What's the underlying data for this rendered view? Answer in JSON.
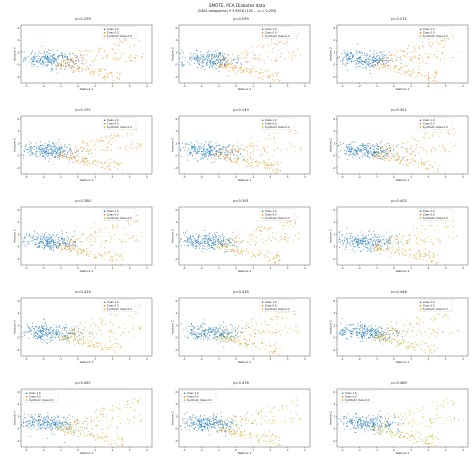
{
  "figure": {
    "title": "SMOTE, PCA Diabetes data",
    "subtitle": "(5404 datapoints) 9 5 8918 (100 ... p = 0.293)"
  },
  "colors": {
    "class_1": "#1f77b4",
    "class_0": "#ff7f0e",
    "synthetic": "#bcbd22",
    "axes": "#333333"
  },
  "legend_labels": [
    "Class 1.0",
    "Class 0.0",
    "Synthetic Class 0.0"
  ],
  "chart_data": [
    {
      "type": "scatter",
      "title": "p=0.293",
      "xlabel": "feature 1",
      "ylabel": "feature 2",
      "xticks": [
        "-3",
        "-2",
        "-1",
        "0",
        "1",
        "2",
        "3",
        "4"
      ],
      "yticks": [
        "-2",
        "0",
        "2",
        "4",
        "6"
      ],
      "legend": "top-right"
    },
    {
      "type": "scatter",
      "title": "p=0.059",
      "xlabel": "feature 1",
      "ylabel": "feature 2",
      "xticks": [
        "-3",
        "-2",
        "-1",
        "0",
        "1",
        "2",
        "3",
        "4"
      ],
      "yticks": [
        "-2",
        "0",
        "2",
        "4",
        "6"
      ],
      "legend": "top-right"
    },
    {
      "type": "scatter",
      "title": "p=0.215",
      "xlabel": "feature 1",
      "ylabel": "feature 2",
      "xticks": [
        "-3",
        "-2",
        "-1",
        "0",
        "1",
        "2",
        "3",
        "4"
      ],
      "yticks": [
        "-2",
        "0",
        "2",
        "4",
        "6"
      ],
      "legend": "top-right"
    },
    {
      "type": "scatter",
      "title": "p=0.197",
      "xlabel": "feature 1",
      "ylabel": "feature 2",
      "xticks": [
        "-3",
        "-2",
        "-1",
        "0",
        "1",
        "2",
        "3",
        "4"
      ],
      "yticks": [
        "-2",
        "0",
        "2",
        "4",
        "6"
      ],
      "legend": "top-right"
    },
    {
      "type": "scatter",
      "title": "p=0.149",
      "xlabel": "feature 1",
      "ylabel": "feature 2",
      "xticks": [
        "-3",
        "-2",
        "-1",
        "0",
        "1",
        "2",
        "3",
        "4"
      ],
      "yticks": [
        "-2",
        "0",
        "2",
        "4",
        "6"
      ],
      "legend": "top-right"
    },
    {
      "type": "scatter",
      "title": "p=0.301",
      "xlabel": "feature 1",
      "ylabel": "feature 2",
      "xticks": [
        "-3",
        "-2",
        "-1",
        "0",
        "1",
        "2",
        "3",
        "4"
      ],
      "yticks": [
        "-2",
        "0",
        "2",
        "4",
        "6"
      ],
      "legend": "top-right"
    },
    {
      "type": "scatter",
      "title": "p=0.380",
      "xlabel": "feature 1",
      "ylabel": "feature 2",
      "xticks": [
        "-3",
        "-2",
        "-1",
        "0",
        "1",
        "2",
        "3",
        "4"
      ],
      "yticks": [
        "-2",
        "0",
        "2",
        "4",
        "6"
      ],
      "legend": "top-right"
    },
    {
      "type": "scatter",
      "title": "p=0.391",
      "xlabel": "feature 1",
      "ylabel": "feature 2",
      "xticks": [
        "-3",
        "-2",
        "-1",
        "0",
        "1",
        "2",
        "3",
        "4"
      ],
      "yticks": [
        "-2",
        "0",
        "2",
        "4",
        "6"
      ],
      "legend": "top-right"
    },
    {
      "type": "scatter",
      "title": "p=0.402",
      "xlabel": "feature 1",
      "ylabel": "feature 2",
      "xticks": [
        "-3",
        "-2",
        "-1",
        "0",
        "1",
        "2",
        "3",
        "4"
      ],
      "yticks": [
        "-2",
        "0",
        "2",
        "4",
        "6"
      ],
      "legend": "top-right"
    },
    {
      "type": "scatter",
      "title": "p=0.424",
      "xlabel": "feature 1",
      "ylabel": "feature 2",
      "xticks": [
        "-3",
        "-2",
        "-1",
        "0",
        "1",
        "2",
        "3",
        "4"
      ],
      "yticks": [
        "-2",
        "0",
        "2",
        "4",
        "6"
      ],
      "legend": "top-right"
    },
    {
      "type": "scatter",
      "title": "p=0.435",
      "xlabel": "feature 1",
      "ylabel": "feature 2",
      "xticks": [
        "-3",
        "-2",
        "-1",
        "0",
        "1",
        "2",
        "3",
        "4"
      ],
      "yticks": [
        "-2",
        "0",
        "2",
        "4",
        "6"
      ],
      "legend": "top-right"
    },
    {
      "type": "scatter",
      "title": "p=0.446",
      "xlabel": "feature 1",
      "ylabel": "feature 2",
      "xticks": [
        "-3",
        "-2",
        "-1",
        "0",
        "1",
        "2",
        "3",
        "4"
      ],
      "yticks": [
        "-2",
        "0",
        "2",
        "4",
        "6"
      ],
      "legend": "top-right"
    },
    {
      "type": "scatter",
      "title": "p=0.467",
      "xlabel": "feature 1",
      "ylabel": "feature 2",
      "xticks": [
        "-3",
        "-2",
        "-1",
        "0",
        "1",
        "2",
        "3",
        "4"
      ],
      "yticks": [
        "-2",
        "0",
        "2",
        "4",
        "6"
      ],
      "legend": "top-left"
    },
    {
      "type": "scatter",
      "title": "p=0.478",
      "xlabel": "feature 1",
      "ylabel": "feature 2",
      "xticks": [
        "-3",
        "-2",
        "-1",
        "0",
        "1",
        "2",
        "3",
        "4"
      ],
      "yticks": [
        "-2",
        "0",
        "2",
        "4",
        "6"
      ],
      "legend": "top-left"
    },
    {
      "type": "scatter",
      "title": "p=0.489",
      "xlabel": "feature 1",
      "ylabel": "feature 2",
      "xticks": [
        "-3",
        "-2",
        "-1",
        "0",
        "1",
        "2",
        "3",
        "4"
      ],
      "yticks": [
        "-2",
        "0",
        "2",
        "4",
        "6"
      ],
      "legend": "top-left"
    }
  ]
}
